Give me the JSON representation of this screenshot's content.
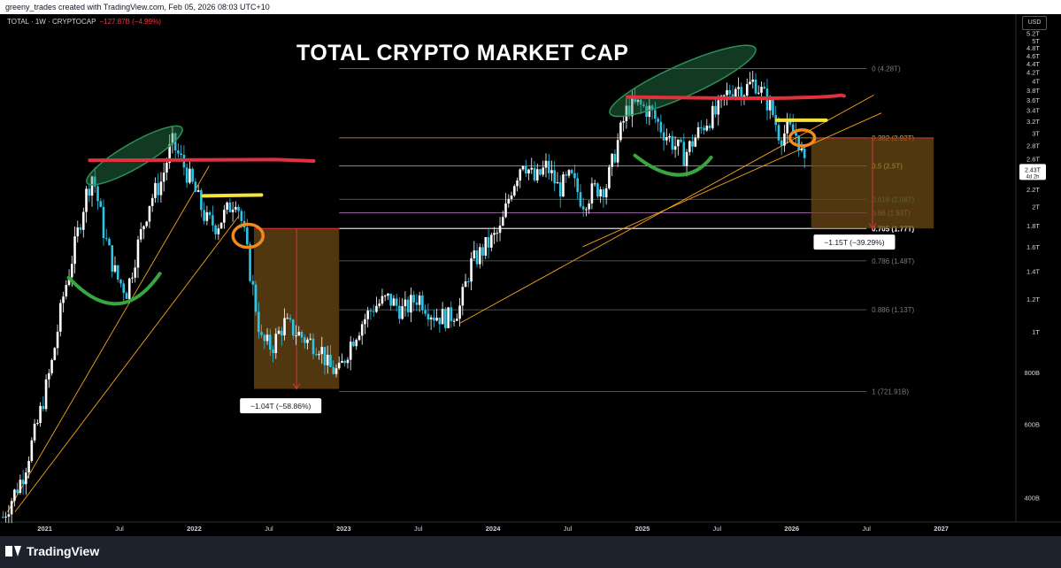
{
  "header": {
    "attribution": "greeny_trades created with TradingView.com, Feb 05, 2026 08:03 UTC+10"
  },
  "legend": {
    "symbol": "TOTAL · 1W · CRYPTOCAP",
    "change": "−127.87B (−4.99%)"
  },
  "currency": "USD",
  "footer": {
    "brand": "TradingView"
  },
  "colors": {
    "candle_up": "#ffffff",
    "candle_down": "#2ec4e6",
    "fib_level": "#787b86",
    "fib_382": "#f7a21b",
    "fib_05": "#e8e04a",
    "fib_618": "#3fa58a",
    "fib_066": "#c57bd1",
    "fib_0705": "#ffffff",
    "resistance": "#e0313f",
    "trendline": "#f7a21b",
    "cup": "#38a63e",
    "breakout": "#f3e33c",
    "circle": "#f28b1d",
    "peak_zone": "#2c8f55",
    "drop_box": "#6b4a14",
    "drop_arrow": "#e0313f"
  },
  "chart_data": {
    "type": "candlestick",
    "title": "TOTAL CRYPTO MARKET CAP",
    "symbol": "TOTAL",
    "interval": "1W",
    "exchange": "CRYPTOCAP",
    "last_price": "2.43T",
    "countdown": "4d 2h",
    "y_scale": "log",
    "ylim_T": [
      0.35,
      5.4
    ],
    "y_ticks": [
      {
        "v": 5.2,
        "label": "5.2T"
      },
      {
        "v": 5.0,
        "label": "5T"
      },
      {
        "v": 4.8,
        "label": "4.8T"
      },
      {
        "v": 4.6,
        "label": "4.6T"
      },
      {
        "v": 4.4,
        "label": "4.4T"
      },
      {
        "v": 4.2,
        "label": "4.2T"
      },
      {
        "v": 4.0,
        "label": "4T"
      },
      {
        "v": 3.8,
        "label": "3.8T"
      },
      {
        "v": 3.6,
        "label": "3.6T"
      },
      {
        "v": 3.4,
        "label": "3.4T"
      },
      {
        "v": 3.2,
        "label": "3.2T"
      },
      {
        "v": 3.0,
        "label": "3T"
      },
      {
        "v": 2.8,
        "label": "2.8T"
      },
      {
        "v": 2.6,
        "label": "2.6T"
      },
      {
        "v": 2.4,
        "label": "2.4T"
      },
      {
        "v": 2.2,
        "label": "2.2T"
      },
      {
        "v": 2.0,
        "label": "2T"
      },
      {
        "v": 1.8,
        "label": "1.8T"
      },
      {
        "v": 1.6,
        "label": "1.6T"
      },
      {
        "v": 1.4,
        "label": "1.4T"
      },
      {
        "v": 1.2,
        "label": "1.2T"
      },
      {
        "v": 1.0,
        "label": "1T"
      },
      {
        "v": 0.8,
        "label": "800B"
      },
      {
        "v": 0.6,
        "label": "600B"
      },
      {
        "v": 0.4,
        "label": "400B"
      }
    ],
    "x_ticks": [
      {
        "t": 2021.0,
        "label": "2021"
      },
      {
        "t": 2021.5,
        "label": "Jul"
      },
      {
        "t": 2022.0,
        "label": "2022"
      },
      {
        "t": 2022.5,
        "label": "Jul"
      },
      {
        "t": 2023.0,
        "label": "2023"
      },
      {
        "t": 2023.5,
        "label": "Jul"
      },
      {
        "t": 2024.0,
        "label": "2024"
      },
      {
        "t": 2024.5,
        "label": "Jul"
      },
      {
        "t": 2025.0,
        "label": "2025"
      },
      {
        "t": 2025.5,
        "label": "Jul"
      },
      {
        "t": 2026.0,
        "label": "2026"
      },
      {
        "t": 2026.5,
        "label": "Jul"
      },
      {
        "t": 2027.0,
        "label": "2027"
      }
    ],
    "xlim": [
      2020.7,
      2027.5
    ],
    "price_path": [
      [
        2020.72,
        0.36
      ],
      [
        2020.85,
        0.45
      ],
      [
        2020.95,
        0.6
      ],
      [
        2021.05,
        0.85
      ],
      [
        2021.12,
        1.2
      ],
      [
        2021.2,
        1.6
      ],
      [
        2021.27,
        2.1
      ],
      [
        2021.32,
        2.4
      ],
      [
        2021.4,
        1.7
      ],
      [
        2021.48,
        1.35
      ],
      [
        2021.55,
        1.25
      ],
      [
        2021.62,
        1.6
      ],
      [
        2021.7,
        2.05
      ],
      [
        2021.78,
        2.3
      ],
      [
        2021.85,
        2.85
      ],
      [
        2021.92,
        2.55
      ],
      [
        2022.0,
        2.2
      ],
      [
        2022.08,
        1.85
      ],
      [
        2022.15,
        1.8
      ],
      [
        2022.22,
        1.95
      ],
      [
        2022.28,
        2.12
      ],
      [
        2022.33,
        1.75
      ],
      [
        2022.38,
        1.35
      ],
      [
        2022.45,
        0.95
      ],
      [
        2022.52,
        0.92
      ],
      [
        2022.6,
        1.05
      ],
      [
        2022.68,
        1.0
      ],
      [
        2022.76,
        0.95
      ],
      [
        2022.84,
        0.93
      ],
      [
        2022.9,
        0.82
      ],
      [
        2022.97,
        0.8
      ],
      [
        2023.05,
        0.95
      ],
      [
        2023.12,
        1.05
      ],
      [
        2023.2,
        1.15
      ],
      [
        2023.3,
        1.2
      ],
      [
        2023.4,
        1.12
      ],
      [
        2023.5,
        1.22
      ],
      [
        2023.6,
        1.1
      ],
      [
        2023.7,
        1.08
      ],
      [
        2023.78,
        1.15
      ],
      [
        2023.85,
        1.45
      ],
      [
        2023.95,
        1.6
      ],
      [
        2024.05,
        1.75
      ],
      [
        2024.12,
        2.2
      ],
      [
        2024.2,
        2.6
      ],
      [
        2024.28,
        2.3
      ],
      [
        2024.36,
        2.5
      ],
      [
        2024.44,
        2.2
      ],
      [
        2024.52,
        2.35
      ],
      [
        2024.6,
        2.05
      ],
      [
        2024.68,
        2.2
      ],
      [
        2024.76,
        2.25
      ],
      [
        2024.84,
        2.9
      ],
      [
        2024.9,
        3.45
      ],
      [
        2024.97,
        3.5
      ],
      [
        2025.05,
        3.4
      ],
      [
        2025.12,
        3.1
      ],
      [
        2025.2,
        2.85
      ],
      [
        2025.28,
        2.65
      ],
      [
        2025.36,
        2.95
      ],
      [
        2025.44,
        3.25
      ],
      [
        2025.5,
        3.35
      ],
      [
        2025.56,
        3.7
      ],
      [
        2025.62,
        3.9
      ],
      [
        2025.68,
        3.8
      ],
      [
        2025.75,
        4.0
      ],
      [
        2025.8,
        3.75
      ],
      [
        2025.86,
        3.45
      ],
      [
        2025.92,
        2.95
      ],
      [
        2025.98,
        3.05
      ],
      [
        2026.04,
        2.95
      ],
      [
        2026.09,
        2.43
      ]
    ],
    "fib_levels": [
      {
        "ratio": "0",
        "label": "0 (4.28T)",
        "value": 4.28,
        "color_key": "fib_level"
      },
      {
        "ratio": "0.382",
        "label": "0.382 (2.92T)",
        "value": 2.92,
        "color_key": "fib_382"
      },
      {
        "ratio": "0.5",
        "label": "0.5 (2.5T)",
        "value": 2.5,
        "color_key": "fib_05"
      },
      {
        "ratio": "0.618",
        "label": "0.618 (2.08T)",
        "value": 2.08,
        "color_key": "fib_618"
      },
      {
        "ratio": "0.66",
        "label": "0.66 (1.93T)",
        "value": 1.93,
        "color_key": "fib_066"
      },
      {
        "ratio": "0.705",
        "label": "0.705 (1.77T)",
        "value": 1.77,
        "color_key": "fib_0705"
      },
      {
        "ratio": "0.786",
        "label": "0.786 (1.48T)",
        "value": 1.48,
        "color_key": "fib_level"
      },
      {
        "ratio": "0.886",
        "label": "0.886 (1.13T)",
        "value": 1.13,
        "color_key": "fib_level"
      },
      {
        "ratio": "1",
        "label": "1 (721.91B)",
        "value": 0.72,
        "color_key": "fib_level"
      }
    ],
    "fib_range_t": [
      2022.97,
      2026.5
    ],
    "annotations": [
      {
        "type": "measure",
        "from_t": 2022.4,
        "to_t": 2022.97,
        "from_v": 1.77,
        "to_v": 0.73,
        "label": "−1.04T (−58.86%)",
        "label_t": 2022.33,
        "label_v": 0.66
      },
      {
        "type": "measure",
        "from_t": 2026.13,
        "to_t": 2026.95,
        "from_v": 2.92,
        "to_v": 1.77,
        "label": "−1.15T (−39.29%)",
        "label_t": 2026.17,
        "label_v": 1.63
      }
    ],
    "last_price_label": "2.43T"
  }
}
